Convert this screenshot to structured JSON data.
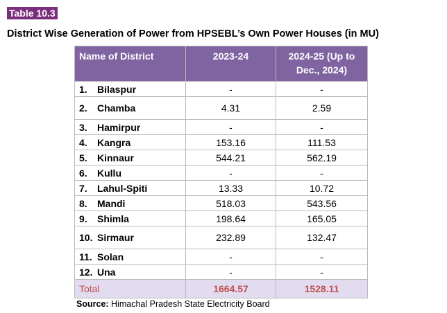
{
  "table_tag": "Table 10.3",
  "title": "District Wise Generation of Power from HPSEBL’s Own Power Houses (in MU)",
  "columns": [
    "Name of District",
    "2023-24",
    "2024-25 (Up to Dec., 2024)"
  ],
  "rows": [
    {
      "no": "1.",
      "district": "Bilaspur",
      "y2023_24": "-",
      "y2024_25": "-"
    },
    {
      "no": "2.",
      "district": "Chamba",
      "y2023_24": "4.31",
      "y2024_25": "2.59"
    },
    {
      "no": "3.",
      "district": "Hamirpur",
      "y2023_24": "-",
      "y2024_25": "-"
    },
    {
      "no": "4.",
      "district": "Kangra",
      "y2023_24": "153.16",
      "y2024_25": "111.53"
    },
    {
      "no": "5.",
      "district": "Kinnaur",
      "y2023_24": "544.21",
      "y2024_25": "562.19"
    },
    {
      "no": "6.",
      "district": "Kullu",
      "y2023_24": "-",
      "y2024_25": "-"
    },
    {
      "no": "7.",
      "district": "Lahul-Spiti",
      "y2023_24": "13.33",
      "y2024_25": "10.72"
    },
    {
      "no": "8.",
      "district": "Mandi",
      "y2023_24": "518.03",
      "y2024_25": "543.56"
    },
    {
      "no": "9.",
      "district": "Shimla",
      "y2023_24": "198.64",
      "y2024_25": "165.05"
    },
    {
      "no": "10.",
      "district": "Sirmaur",
      "y2023_24": "232.89",
      "y2024_25": "132.47"
    },
    {
      "no": "11.",
      "district": "Solan",
      "y2023_24": "-",
      "y2024_25": "-"
    },
    {
      "no": "12.",
      "district": "Una",
      "y2023_24": "-",
      "y2024_25": "-"
    }
  ],
  "total": {
    "label": "Total",
    "y2023_24": "1664.57",
    "y2024_25": "1528.11"
  },
  "source": {
    "label": "Source:",
    "text": "Himachal Pradesh State Electricity Board"
  },
  "colors": {
    "header_bg": "#8064a2",
    "tag_bg": "#7b2d7e",
    "total_text": "#c0504d",
    "total_bg": "#e3dbef"
  }
}
